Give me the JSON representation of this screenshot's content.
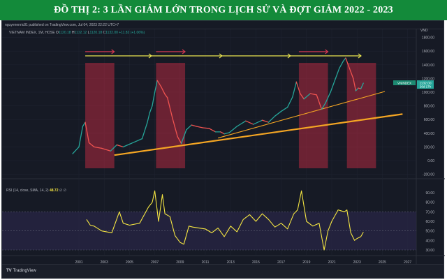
{
  "title": "ĐỒ THỊ 2: 3 LẦN GIẢM LỚN TRONG LỊCH SỬ VÀ ĐỢT GIẢM 2022 - 2023",
  "publisher": "nguyenenric81 published on TradingView.com, Jul 04, 2023 22:22 UTC+7",
  "symbol": {
    "name": "VIETNAM INDEX, 1M, HOSE",
    "o_label": "O",
    "o": "1120.18",
    "h_label": "H",
    "h": "1132.12",
    "l_label": "L",
    "l": "1120.18",
    "c_label": "C",
    "c": "1132.00",
    "change": "+11.82 (+1.06%)"
  },
  "price_axis": {
    "currency": "VND",
    "ticks": [
      "1800.00",
      "1600.00",
      "1400.00",
      "1200.00",
      "1000.00",
      "800.00",
      "600.00",
      "400.00",
      "200.00",
      "0.00",
      "-200.00"
    ],
    "last_tag_symbol": "VNINDEX",
    "last_price": "1132.00",
    "countdown": "26d 17h"
  },
  "rsi": {
    "label": "RSI (14, close, SMA, 14, 2)",
    "value": "48.72",
    "extra1": "∅",
    "extra2": "∅",
    "ticks": [
      "90.00",
      "80.00",
      "70.00",
      "60.00",
      "50.00",
      "40.00",
      "30.00"
    ]
  },
  "time_axis": {
    "ticks": [
      "2001",
      "2003",
      "2005",
      "2007",
      "2009",
      "2011",
      "2013",
      "2015",
      "2017",
      "2019",
      "2021",
      "2023",
      "2025",
      "2027"
    ]
  },
  "footer": {
    "logo_mark": "TV",
    "logo_text": "TradingView"
  },
  "colors": {
    "title_bg": "#138a3a",
    "chart_bg": "#161a25",
    "up": "#26a69a",
    "down": "#ef5350",
    "drawdown_box": "#b22a3f",
    "trend_line": "#f5a623",
    "arrow_yellow": "#e9e44f",
    "arrow_red": "#d8374f",
    "rsi_line": "#f5e642",
    "rsi_band": "#2a2747"
  },
  "chart_data": [
    {
      "type": "line",
      "title": "VIETNAM INDEX, 1M, HOSE (monthly candles, approximated)",
      "xlabel": "",
      "ylabel": "VND",
      "ylim": [
        -200,
        1800
      ],
      "x": [
        2000.5,
        2001.0,
        2001.3,
        2001.5,
        2001.8,
        2002.2,
        2002.8,
        2003.5,
        2004.0,
        2004.5,
        2005.0,
        2005.5,
        2006.0,
        2006.4,
        2006.6,
        2006.8,
        2007.0,
        2007.2,
        2007.5,
        2007.8,
        2008.0,
        2008.4,
        2008.8,
        2009.1,
        2009.5,
        2009.9,
        2010.3,
        2010.8,
        2011.3,
        2011.8,
        2012.2,
        2012.5,
        2012.9,
        2013.5,
        2014.2,
        2014.8,
        2015.5,
        2016.0,
        2016.5,
        2017.0,
        2017.5,
        2017.9,
        2018.2,
        2018.5,
        2018.8,
        2019.3,
        2019.8,
        2020.2,
        2020.5,
        2020.9,
        2021.3,
        2021.6,
        2021.9,
        2022.1,
        2022.4,
        2022.7,
        2022.9,
        2023.1,
        2023.3,
        2023.5
      ],
      "series": [
        {
          "name": "VNINDEX close",
          "values": [
            100,
            200,
            500,
            560,
            260,
            200,
            180,
            140,
            230,
            200,
            240,
            280,
            320,
            550,
            700,
            800,
            1000,
            1170,
            1080,
            970,
            920,
            620,
            350,
            250,
            450,
            520,
            500,
            480,
            470,
            420,
            420,
            390,
            410,
            500,
            580,
            530,
            590,
            560,
            650,
            720,
            780,
            930,
            1150,
            980,
            900,
            980,
            960,
            750,
            840,
            1000,
            1200,
            1350,
            1450,
            1500,
            1350,
            1200,
            1020,
            1060,
            1050,
            1132
          ]
        }
      ],
      "annotations": {
        "drawdown_boxes": [
          {
            "from": 2001.5,
            "to": 2003.8
          },
          {
            "from": 2007.1,
            "to": 2009.4
          },
          {
            "from": 2018.4,
            "to": 2020.7
          },
          {
            "from": 2022.2,
            "to": 2024.5
          }
        ],
        "trend_lines": [
          {
            "from": [
              2003.8,
              80
            ],
            "to": [
              2026.6,
              680
            ],
            "weight": "thick"
          },
          {
            "from": [
              2012.0,
              330
            ],
            "to": [
              2025.2,
              1010
            ],
            "weight": "thin"
          }
        ],
        "horizontal_resistance_arrow": {
          "from": 2001.5,
          "to": 2023.3,
          "level": 1520
        },
        "red_arrows": [
          "2001.5-2003.8",
          "2007.1-2009.4",
          "2018.4-2020.7"
        ],
        "last_price": 1132.0
      }
    },
    {
      "type": "line",
      "title": "RSI (14, close, SMA, 14, 2)",
      "ylim": [
        25,
        95
      ],
      "band": [
        30,
        70
      ],
      "midline": 50,
      "x": [
        2001.6,
        2001.9,
        2002.2,
        2002.8,
        2003.6,
        2004.2,
        2004.5,
        2005.0,
        2005.8,
        2006.5,
        2006.8,
        2007.0,
        2007.3,
        2007.6,
        2007.8,
        2008.2,
        2008.6,
        2009.0,
        2009.3,
        2009.7,
        2010.0,
        2010.5,
        2011.0,
        2011.5,
        2012.0,
        2012.5,
        2013.0,
        2013.5,
        2014.0,
        2014.5,
        2015.0,
        2015.5,
        2016.0,
        2016.5,
        2017.0,
        2017.5,
        2018.0,
        2018.3,
        2018.6,
        2019.0,
        2019.5,
        2020.0,
        2020.4,
        2020.7,
        2021.0,
        2021.5,
        2022.0,
        2022.2,
        2022.5,
        2022.8,
        2023.0,
        2023.3,
        2023.5
      ],
      "series": [
        {
          "name": "RSI",
          "values": [
            62,
            56,
            55,
            50,
            48,
            70,
            58,
            56,
            58,
            75,
            80,
            92,
            60,
            88,
            68,
            65,
            45,
            38,
            36,
            55,
            54,
            53,
            52,
            48,
            53,
            44,
            55,
            49,
            62,
            67,
            60,
            68,
            62,
            54,
            58,
            52,
            68,
            72,
            92,
            60,
            55,
            58,
            30,
            50,
            60,
            72,
            70,
            72,
            48,
            40,
            42,
            44,
            48.72
          ]
        }
      ]
    }
  ]
}
